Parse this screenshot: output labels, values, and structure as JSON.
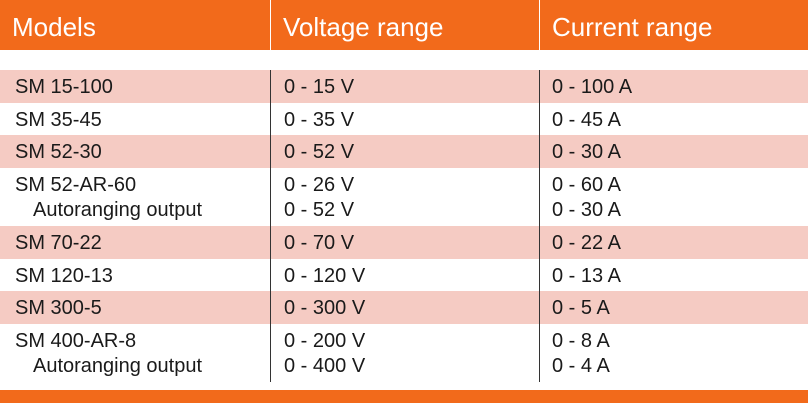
{
  "headers": [
    "Models",
    "Voltage range",
    "Current range"
  ],
  "rows": [
    {
      "model": "SM 15-100",
      "voltage": "0 - 15 V",
      "current": "0 - 100 A"
    },
    {
      "model": "SM 35-45",
      "voltage": "0 - 35 V",
      "current": "0 - 45 A"
    },
    {
      "model": "SM 52-30",
      "voltage": "0 - 52 V",
      "current": "0 - 30 A"
    },
    {
      "model": "SM 52-AR-60",
      "sub": "Autoranging output",
      "voltage": "0 - 26 V",
      "voltage2": "0 - 52 V",
      "current": "0 - 60 A",
      "current2": "0 - 30 A"
    },
    {
      "model": "SM 70-22",
      "voltage": "0 - 70 V",
      "current": "0 - 22 A"
    },
    {
      "model": "SM 120-13",
      "voltage": "0 - 120 V",
      "current": "0 - 13 A"
    },
    {
      "model": "SM 300-5",
      "voltage": "0 - 300 V",
      "current": "0 - 5 A"
    },
    {
      "model": "SM 400-AR-8",
      "sub": "Autoranging output",
      "voltage": "0 - 200 V",
      "voltage2": "0 - 400 V",
      "current": "0 - 8 A",
      "current2": "0 - 4 A"
    }
  ],
  "colors": {
    "header": "#f26a1b",
    "shaded_row": "#f5cbc3"
  }
}
